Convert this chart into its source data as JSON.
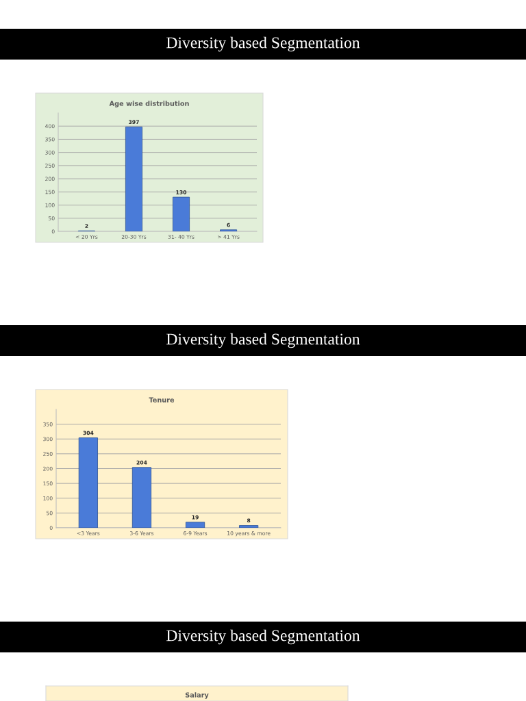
{
  "chart_data": [
    {
      "type": "bar",
      "title": "Diversity based Segmentation",
      "subtitle": "Age wise distribution",
      "categories": [
        "< 20 Yrs",
        "20-30 Yrs",
        "31- 40 Yrs",
        "> 41 Yrs"
      ],
      "values": [
        2,
        397,
        130,
        6
      ],
      "color": "#4a7bd8",
      "ylim": [
        0,
        450
      ],
      "yticks": [
        0,
        50,
        100,
        150,
        200,
        250,
        300,
        350,
        400
      ],
      "grid": "y",
      "data_labels": true
    },
    {
      "type": "bar",
      "title": "Diversity based Segmentation",
      "subtitle": "Tenure",
      "categories": [
        "<3 Years",
        "3-6 Years",
        "6-9 Years",
        "10 years & more"
      ],
      "values": [
        304,
        204,
        19,
        8
      ],
      "color": "#4a7bd8",
      "ylim": [
        0,
        400
      ],
      "yticks": [
        0,
        50,
        100,
        150,
        200,
        250,
        300,
        350
      ],
      "grid": "y",
      "data_labels": true
    },
    {
      "type": "other",
      "title": "Diversity based Segmentation",
      "subtitle": "Salary"
    }
  ]
}
